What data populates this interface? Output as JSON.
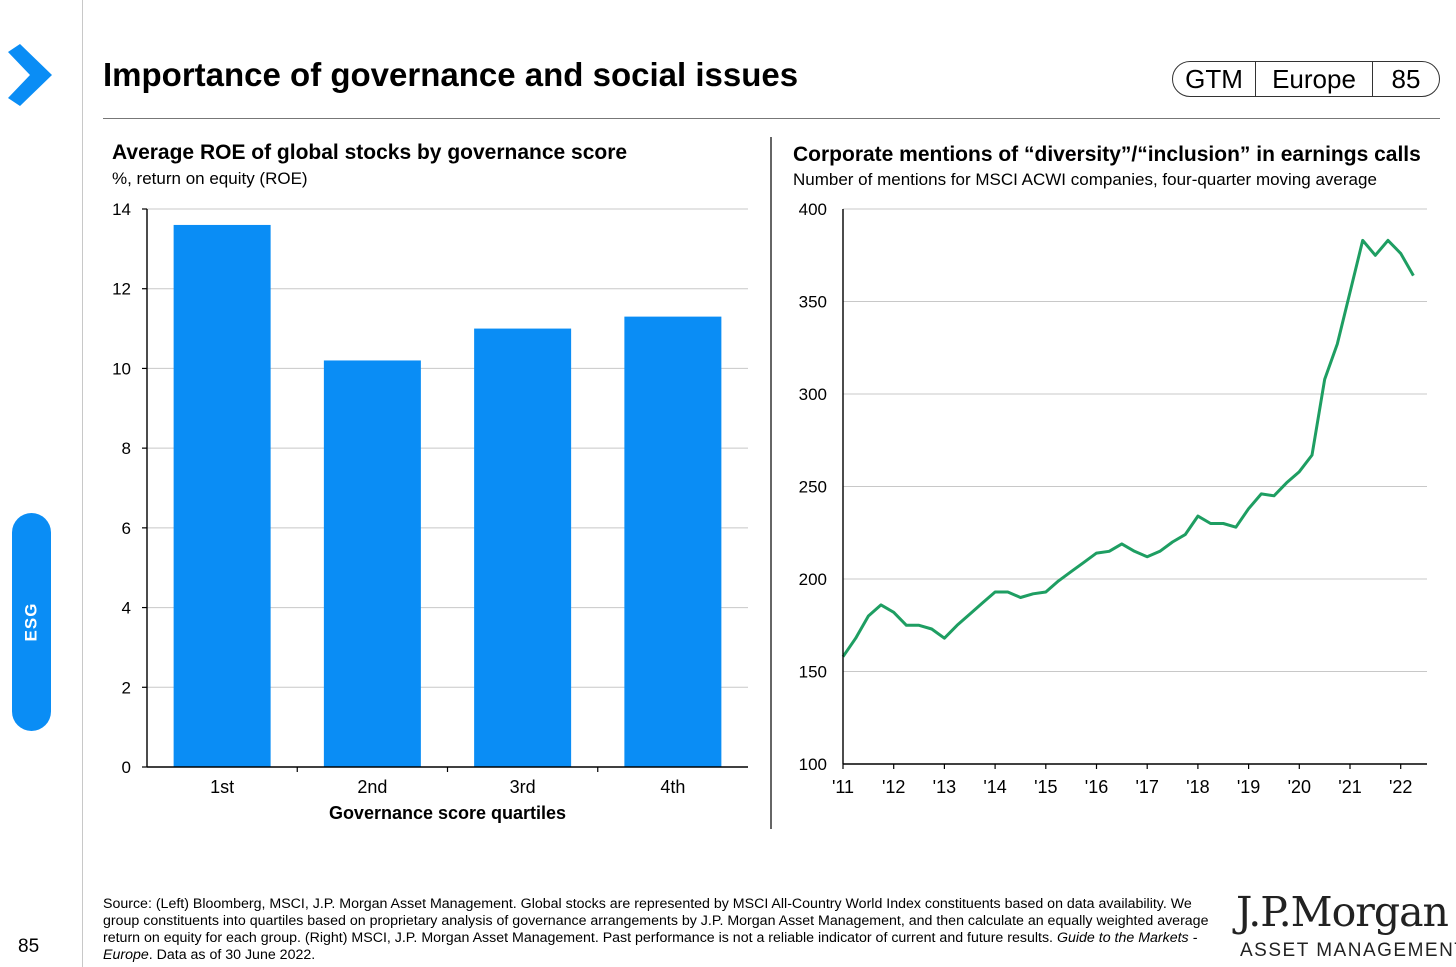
{
  "header": {
    "title": "Importance of governance and social issues",
    "badge": [
      "GTM",
      "Europe",
      "85"
    ]
  },
  "sidebar": {
    "section_label": "ESG",
    "page_number": "85"
  },
  "colors": {
    "bar": "#0a8df5",
    "line": "#1e9e62",
    "tab": "#0a8df5",
    "chevron": "#0a8df5"
  },
  "left_chart": {
    "title": "Average ROE of global stocks by governance score",
    "subtitle": "%, return on equity (ROE)"
  },
  "right_chart": {
    "title": "Corporate mentions of “diversity”/“inclusion” in earnings calls",
    "subtitle": "Number of mentions for MSCI ACWI companies, four-quarter moving average"
  },
  "chart_data": [
    {
      "type": "bar",
      "title": "Average ROE of global stocks by governance score",
      "subtitle": "%, return on equity (ROE)",
      "categories": [
        "1st",
        "2nd",
        "3rd",
        "4th"
      ],
      "values": [
        13.6,
        10.2,
        11.0,
        11.3
      ],
      "xlabel": "Governance score quartiles",
      "ylabel": "",
      "ylim": [
        0,
        14
      ],
      "yticks": [
        "0",
        "2",
        "4",
        "6",
        "8",
        "10",
        "12",
        "14"
      ],
      "grid": true
    },
    {
      "type": "line",
      "title": "Corporate mentions of “diversity”/“inclusion” in earnings calls",
      "subtitle": "Number of mentions for MSCI ACWI companies, four-quarter moving average",
      "x_tick_labels": [
        "'11",
        "'12",
        "'13",
        "'14",
        "'15",
        "'16",
        "'17",
        "'18",
        "'19",
        "'20",
        "'21",
        "'22"
      ],
      "x": [
        "2011 Q1",
        "2011 Q2",
        "2011 Q3",
        "2011 Q4",
        "2012 Q1",
        "2012 Q2",
        "2012 Q3",
        "2012 Q4",
        "2013 Q1",
        "2013 Q2",
        "2013 Q3",
        "2013 Q4",
        "2014 Q1",
        "2014 Q2",
        "2014 Q3",
        "2014 Q4",
        "2015 Q1",
        "2015 Q2",
        "2015 Q3",
        "2015 Q4",
        "2016 Q1",
        "2016 Q2",
        "2016 Q3",
        "2016 Q4",
        "2017 Q1",
        "2017 Q2",
        "2017 Q3",
        "2017 Q4",
        "2018 Q1",
        "2018 Q2",
        "2018 Q3",
        "2018 Q4",
        "2019 Q1",
        "2019 Q2",
        "2019 Q3",
        "2019 Q4",
        "2020 Q1",
        "2020 Q2",
        "2020 Q3",
        "2020 Q4",
        "2021 Q1",
        "2021 Q2",
        "2021 Q3",
        "2021 Q4",
        "2022 Q1",
        "2022 Q2"
      ],
      "values": [
        158,
        168,
        180,
        186,
        182,
        175,
        175,
        173,
        168,
        175,
        181,
        187,
        193,
        193,
        190,
        192,
        193,
        199,
        204,
        209,
        214,
        215,
        219,
        215,
        212,
        215,
        220,
        224,
        234,
        230,
        230,
        228,
        238,
        246,
        245,
        252,
        258,
        267,
        308,
        327,
        355,
        383,
        375,
        383,
        376,
        364
      ],
      "ylim": [
        100,
        400
      ],
      "yticks": [
        "100",
        "150",
        "200",
        "250",
        "300",
        "350",
        "400"
      ],
      "grid": true
    }
  ],
  "footer": {
    "source_text": "Source: (Left) Bloomberg, MSCI, J.P. Morgan Asset Management. Global stocks are represented by MSCI All-Country World Index constituents based on data availability. We group constituents into quartiles based on proprietary analysis of governance arrangements by J.P. Morgan Asset Management, and then calculate an equally weighted average return on equity for each group. (Right) MSCI, J.P. Morgan Asset Management. Past performance is not a reliable indicator of current and future results.",
    "source_italic": "Guide to the Markets - Europe",
    "source_tail": ". Data as of 30 June 2022.",
    "logo_main": "J.P.Morgan",
    "logo_sub": "ASSET MANAGEMENT"
  }
}
